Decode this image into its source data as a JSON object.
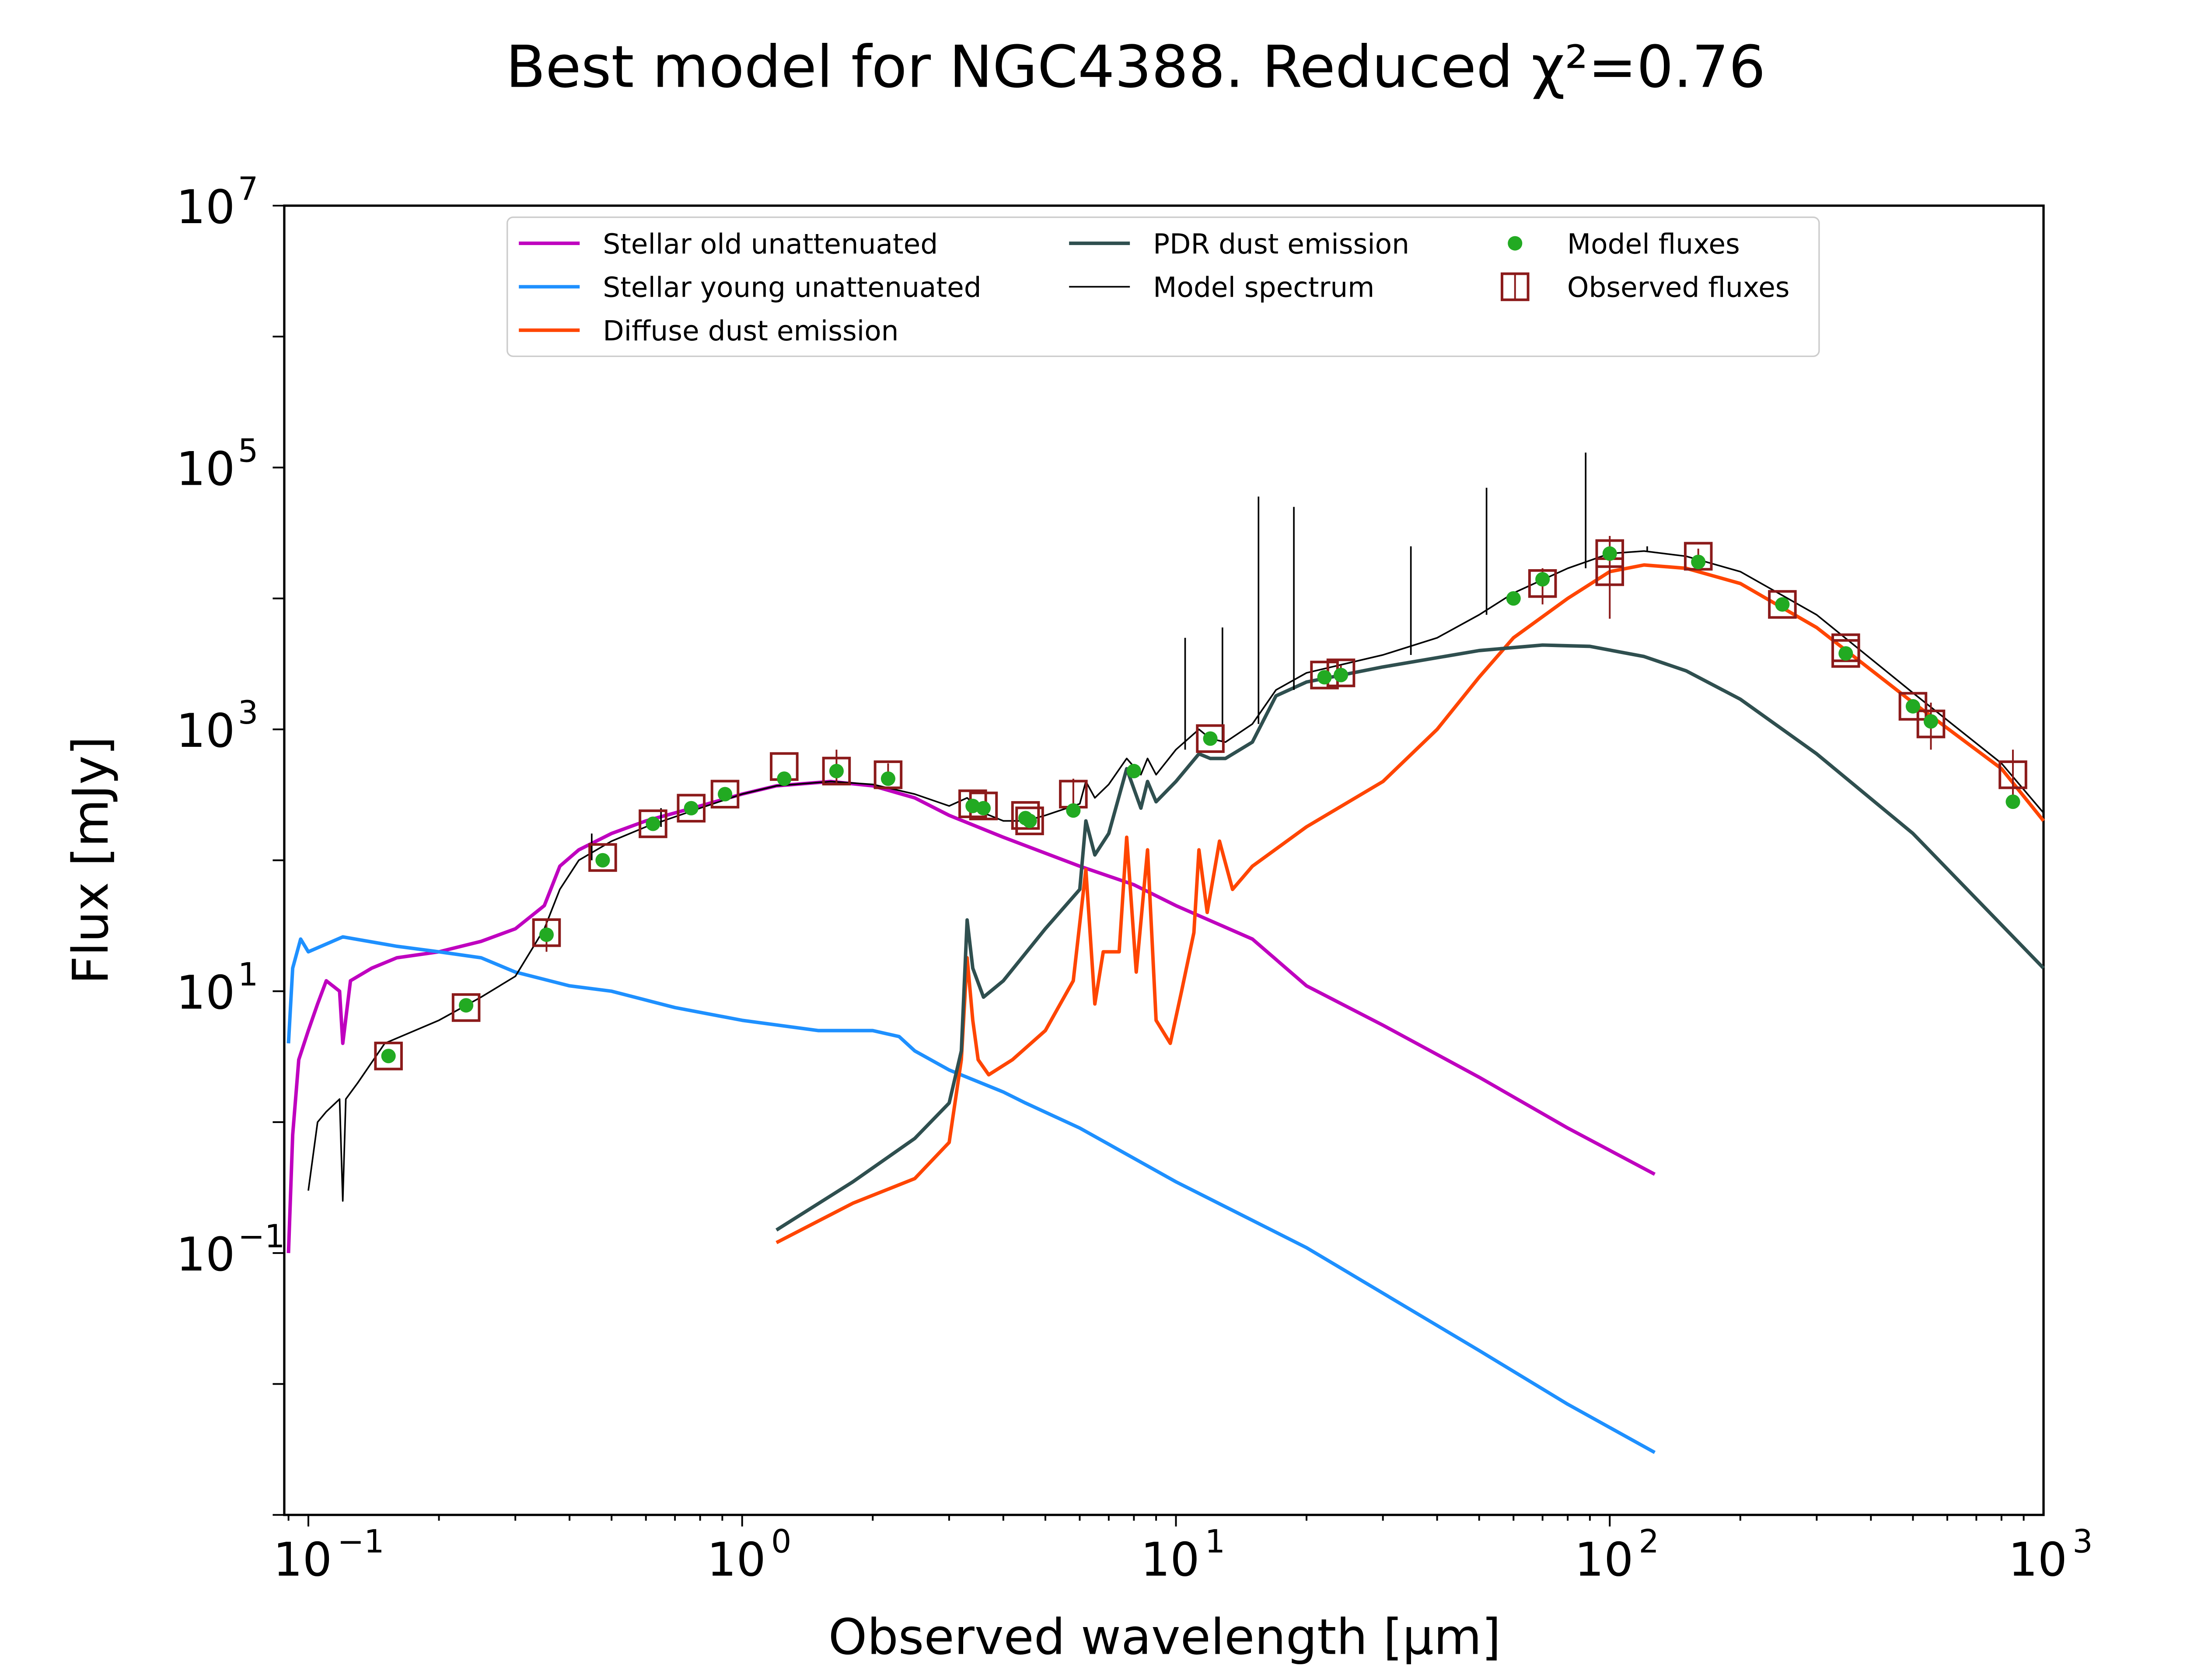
{
  "chart_data": {
    "type": "line",
    "title": "Best model for NGC4388. Reduced χ²=0.76",
    "xlabel": "Observed wavelength [μm]",
    "ylabel": "Flux [mJy]",
    "xscale": "log",
    "yscale": "log",
    "xlim": [
      0.088,
      1000
    ],
    "ylim": [
      0.001,
      10000000
    ],
    "grid": false,
    "legend_position": "top",
    "x_ticks": [
      {
        "base": "10",
        "exp": "−1",
        "value": 0.1
      },
      {
        "base": "10",
        "exp": "0",
        "value": 1
      },
      {
        "base": "10",
        "exp": "1",
        "value": 10
      },
      {
        "base": "10",
        "exp": "2",
        "value": 100
      },
      {
        "base": "10",
        "exp": "3",
        "value": 1000
      }
    ],
    "y_ticks": [
      {
        "base": "10",
        "exp": "−1",
        "value": 0.1
      },
      {
        "base": "10",
        "exp": "1",
        "value": 10
      },
      {
        "base": "10",
        "exp": "3",
        "value": 1000
      },
      {
        "base": "10",
        "exp": "5",
        "value": 100000
      },
      {
        "base": "10",
        "exp": "7",
        "value": 10000000
      }
    ],
    "series": [
      {
        "name": "Stellar old unattenuated",
        "color": "#bf00bf",
        "kind": "line",
        "points": [
          [
            0.09,
            0.1
          ],
          [
            0.092,
            0.8
          ],
          [
            0.095,
            3
          ],
          [
            0.1,
            5
          ],
          [
            0.105,
            8
          ],
          [
            0.11,
            12
          ],
          [
            0.118,
            10
          ],
          [
            0.12,
            4
          ],
          [
            0.125,
            12
          ],
          [
            0.14,
            15
          ],
          [
            0.16,
            18
          ],
          [
            0.2,
            20
          ],
          [
            0.25,
            24
          ],
          [
            0.3,
            30
          ],
          [
            0.35,
            45
          ],
          [
            0.38,
            90
          ],
          [
            0.42,
            120
          ],
          [
            0.5,
            160
          ],
          [
            0.6,
            200
          ],
          [
            0.8,
            260
          ],
          [
            1.0,
            320
          ],
          [
            1.2,
            370
          ],
          [
            1.6,
            400
          ],
          [
            2.0,
            370
          ],
          [
            2.5,
            300
          ],
          [
            3.0,
            220
          ],
          [
            4.0,
            150
          ],
          [
            6.0,
            90
          ],
          [
            8.0,
            65
          ],
          [
            10.0,
            45
          ],
          [
            15.0,
            25
          ],
          [
            20.0,
            11
          ],
          [
            30.0,
            5.5
          ],
          [
            50.0,
            2.2
          ],
          [
            80.0,
            0.9
          ],
          [
            127.0,
            0.4
          ]
        ]
      },
      {
        "name": "Stellar young unattenuated",
        "color": "#1e90ff",
        "kind": "line",
        "points": [
          [
            0.09,
            4
          ],
          [
            0.092,
            15
          ],
          [
            0.096,
            25
          ],
          [
            0.1,
            20
          ],
          [
            0.12,
            26
          ],
          [
            0.16,
            22
          ],
          [
            0.2,
            20
          ],
          [
            0.25,
            18
          ],
          [
            0.3,
            14
          ],
          [
            0.4,
            11
          ],
          [
            0.5,
            10
          ],
          [
            0.7,
            7.5
          ],
          [
            1.0,
            6
          ],
          [
            1.5,
            5
          ],
          [
            2.0,
            5
          ],
          [
            2.3,
            4.5
          ],
          [
            2.5,
            3.5
          ],
          [
            3.0,
            2.5
          ],
          [
            4.0,
            1.7
          ],
          [
            4.5,
            1.4
          ],
          [
            6.0,
            0.9
          ],
          [
            10.0,
            0.35
          ],
          [
            20.0,
            0.11
          ],
          [
            50.0,
            0.018
          ],
          [
            80.0,
            0.007
          ],
          [
            127.0,
            0.003
          ]
        ]
      },
      {
        "name": "Diffuse dust emission",
        "color": "#ff4500",
        "kind": "line",
        "points": [
          [
            1.2,
            0.12
          ],
          [
            1.8,
            0.24
          ],
          [
            2.5,
            0.37
          ],
          [
            3.0,
            0.7
          ],
          [
            3.2,
            3.0
          ],
          [
            3.3,
            18
          ],
          [
            3.4,
            6
          ],
          [
            3.5,
            3
          ],
          [
            3.7,
            2.3
          ],
          [
            4.2,
            3
          ],
          [
            5.0,
            5
          ],
          [
            5.8,
            12
          ],
          [
            6.2,
            85
          ],
          [
            6.5,
            8
          ],
          [
            6.8,
            20
          ],
          [
            7.4,
            20
          ],
          [
            7.7,
            150
          ],
          [
            8.1,
            14
          ],
          [
            8.6,
            120
          ],
          [
            9.0,
            6
          ],
          [
            9.7,
            4
          ],
          [
            10.3,
            10
          ],
          [
            11.0,
            28
          ],
          [
            11.3,
            120
          ],
          [
            11.8,
            40
          ],
          [
            12.6,
            140
          ],
          [
            13.5,
            60
          ],
          [
            15.0,
            90
          ],
          [
            20.0,
            180
          ],
          [
            30.0,
            400
          ],
          [
            40.0,
            1000
          ],
          [
            50.0,
            2500
          ],
          [
            60.0,
            5000
          ],
          [
            80.0,
            10000
          ],
          [
            100.0,
            16000
          ],
          [
            120.0,
            18000
          ],
          [
            150.0,
            17000
          ],
          [
            200.0,
            13000
          ],
          [
            300.0,
            6000
          ],
          [
            500.0,
            1600
          ],
          [
            800.0,
            500
          ],
          [
            1000.0,
            200
          ]
        ]
      },
      {
        "name": "PDR dust emission",
        "color": "#2f4f4f",
        "kind": "line",
        "points": [
          [
            1.2,
            0.15
          ],
          [
            1.8,
            0.35
          ],
          [
            2.5,
            0.75
          ],
          [
            3.0,
            1.4
          ],
          [
            3.2,
            3.5
          ],
          [
            3.3,
            35
          ],
          [
            3.4,
            15
          ],
          [
            3.6,
            9
          ],
          [
            4.0,
            12
          ],
          [
            5.0,
            30
          ],
          [
            6.0,
            60
          ],
          [
            6.2,
            200
          ],
          [
            6.5,
            110
          ],
          [
            7.0,
            160
          ],
          [
            7.7,
            500
          ],
          [
            8.3,
            250
          ],
          [
            8.6,
            400
          ],
          [
            9.0,
            280
          ],
          [
            10.0,
            400
          ],
          [
            11.3,
            650
          ],
          [
            12.0,
            600
          ],
          [
            13.0,
            600
          ],
          [
            15.0,
            800
          ],
          [
            17.0,
            1800
          ],
          [
            20.0,
            2300
          ],
          [
            30.0,
            3000
          ],
          [
            50.0,
            4000
          ],
          [
            70.0,
            4400
          ],
          [
            90.0,
            4300
          ],
          [
            120.0,
            3600
          ],
          [
            150.0,
            2800
          ],
          [
            200.0,
            1700
          ],
          [
            300.0,
            650
          ],
          [
            500.0,
            160
          ],
          [
            1000.0,
            15
          ]
        ]
      },
      {
        "name": "Model spectrum",
        "color": "#000000",
        "kind": "thinline",
        "points": [
          [
            0.1,
            0.3
          ],
          [
            0.105,
            1.0
          ],
          [
            0.11,
            1.2
          ],
          [
            0.118,
            1.5
          ],
          [
            0.12,
            0.25
          ],
          [
            0.122,
            1.5
          ],
          [
            0.13,
            2
          ],
          [
            0.15,
            4
          ],
          [
            0.2,
            6
          ],
          [
            0.25,
            9
          ],
          [
            0.3,
            13
          ],
          [
            0.35,
            30
          ],
          [
            0.38,
            60
          ],
          [
            0.42,
            100
          ],
          [
            0.5,
            140
          ],
          [
            0.6,
            180
          ],
          [
            0.8,
            250
          ],
          [
            1.0,
            320
          ],
          [
            1.2,
            370
          ],
          [
            1.6,
            400
          ],
          [
            2.0,
            380
          ],
          [
            2.5,
            320
          ],
          [
            3.0,
            260
          ],
          [
            3.3,
            300
          ],
          [
            3.6,
            230
          ],
          [
            4.0,
            200
          ],
          [
            4.5,
            200
          ],
          [
            5.0,
            220
          ],
          [
            6.0,
            270
          ],
          [
            6.2,
            400
          ],
          [
            6.5,
            300
          ],
          [
            7.0,
            380
          ],
          [
            7.7,
            600
          ],
          [
            8.3,
            450
          ],
          [
            8.6,
            600
          ],
          [
            9.0,
            450
          ],
          [
            10.0,
            700
          ],
          [
            11.3,
            1000
          ],
          [
            12.0,
            850
          ],
          [
            13.0,
            800
          ],
          [
            15.0,
            1100
          ],
          [
            17.0,
            2000
          ],
          [
            20.0,
            2700
          ],
          [
            30.0,
            3700
          ],
          [
            40.0,
            5000
          ],
          [
            50.0,
            7500
          ],
          [
            60.0,
            11000
          ],
          [
            80.0,
            17000
          ],
          [
            100.0,
            22000
          ],
          [
            120.0,
            23000
          ],
          [
            150.0,
            21000
          ],
          [
            200.0,
            16000
          ],
          [
            300.0,
            7500
          ],
          [
            500.0,
            1900
          ],
          [
            800.0,
            550
          ],
          [
            1000.0,
            230
          ]
        ],
        "spikes": [
          [
            0.45,
            100,
            160
          ],
          [
            0.65,
            180,
            250
          ],
          [
            10.5,
            700,
            5000
          ],
          [
            12.8,
            800,
            6000
          ],
          [
            15.5,
            1100,
            60000
          ],
          [
            18.7,
            2000,
            50000
          ],
          [
            34.8,
            3700,
            25000
          ],
          [
            52.0,
            7500,
            70000
          ],
          [
            88.0,
            17000,
            130000
          ],
          [
            122.0,
            23000,
            25000
          ]
        ]
      }
    ],
    "model_fluxes": {
      "name": "Model fluxes",
      "color": "#22aa22",
      "points": [
        [
          0.153,
          3.2
        ],
        [
          0.231,
          7.8
        ],
        [
          0.354,
          27
        ],
        [
          0.477,
          100
        ],
        [
          0.623,
          190
        ],
        [
          0.763,
          250
        ],
        [
          0.913,
          320
        ],
        [
          1.25,
          420
        ],
        [
          1.65,
          480
        ],
        [
          2.17,
          420
        ],
        [
          3.4,
          260
        ],
        [
          3.6,
          250
        ],
        [
          4.5,
          210
        ],
        [
          4.6,
          200
        ],
        [
          5.8,
          240
        ],
        [
          8.0,
          480
        ],
        [
          12.0,
          850
        ],
        [
          22.0,
          2500
        ],
        [
          24.0,
          2600
        ],
        [
          60.0,
          10000
        ],
        [
          70.0,
          14000
        ],
        [
          100.0,
          22000
        ],
        [
          160.0,
          19000
        ],
        [
          250.0,
          9000
        ],
        [
          350.0,
          3800
        ],
        [
          500.0,
          1500
        ],
        [
          550.0,
          1150
        ],
        [
          850.0,
          280
        ]
      ]
    },
    "observed_fluxes": {
      "name": "Observed fluxes",
      "color": "#8b1a1a",
      "points": [
        [
          0.153,
          3.2
        ],
        [
          0.231,
          7.5
        ],
        [
          0.354,
          28
        ],
        [
          0.477,
          105
        ],
        [
          0.623,
          190
        ],
        [
          0.763,
          250
        ],
        [
          0.913,
          320
        ],
        [
          1.25,
          520
        ],
        [
          1.65,
          480
        ],
        [
          2.17,
          450
        ],
        [
          3.4,
          270
        ],
        [
          3.6,
          260
        ],
        [
          4.5,
          220
        ],
        [
          4.6,
          200
        ],
        [
          5.8,
          320
        ],
        [
          12.0,
          850
        ],
        [
          22.0,
          2600
        ],
        [
          24.0,
          2700
        ],
        [
          70.0,
          13000
        ],
        [
          100.0,
          22000
        ],
        [
          100.0,
          16000
        ],
        [
          160.0,
          21000
        ],
        [
          250.0,
          9000
        ],
        [
          350.0,
          4200
        ],
        [
          350.0,
          3800
        ],
        [
          500.0,
          1500
        ],
        [
          550.0,
          1100
        ],
        [
          850.0,
          450
        ]
      ],
      "errorbars": [
        [
          0.354,
          20,
          36
        ],
        [
          1.65,
          380,
          700
        ],
        [
          2.17,
          380,
          550
        ],
        [
          5.8,
          240,
          420
        ],
        [
          24.0,
          2300,
          3100
        ],
        [
          100.0,
          7000,
          30000
        ],
        [
          70.0,
          9000,
          17000
        ],
        [
          160.0,
          17000,
          24000
        ],
        [
          550.0,
          700,
          1600
        ],
        [
          850.0,
          300,
          700
        ]
      ]
    },
    "legend": {
      "entries": [
        {
          "label": "Stellar old unattenuated",
          "kind": "line",
          "color": "#bf00bf"
        },
        {
          "label": "Stellar young unattenuated",
          "kind": "line",
          "color": "#1e90ff"
        },
        {
          "label": "Diffuse dust emission",
          "kind": "line",
          "color": "#ff4500"
        },
        {
          "label": "PDR dust emission",
          "kind": "line",
          "color": "#2f4f4f"
        },
        {
          "label": "Model spectrum",
          "kind": "thinline",
          "color": "#000000"
        },
        {
          "label": "Model fluxes",
          "kind": "dot",
          "color": "#22aa22"
        },
        {
          "label": "Observed fluxes",
          "kind": "square",
          "color": "#8b1a1a"
        }
      ]
    }
  }
}
